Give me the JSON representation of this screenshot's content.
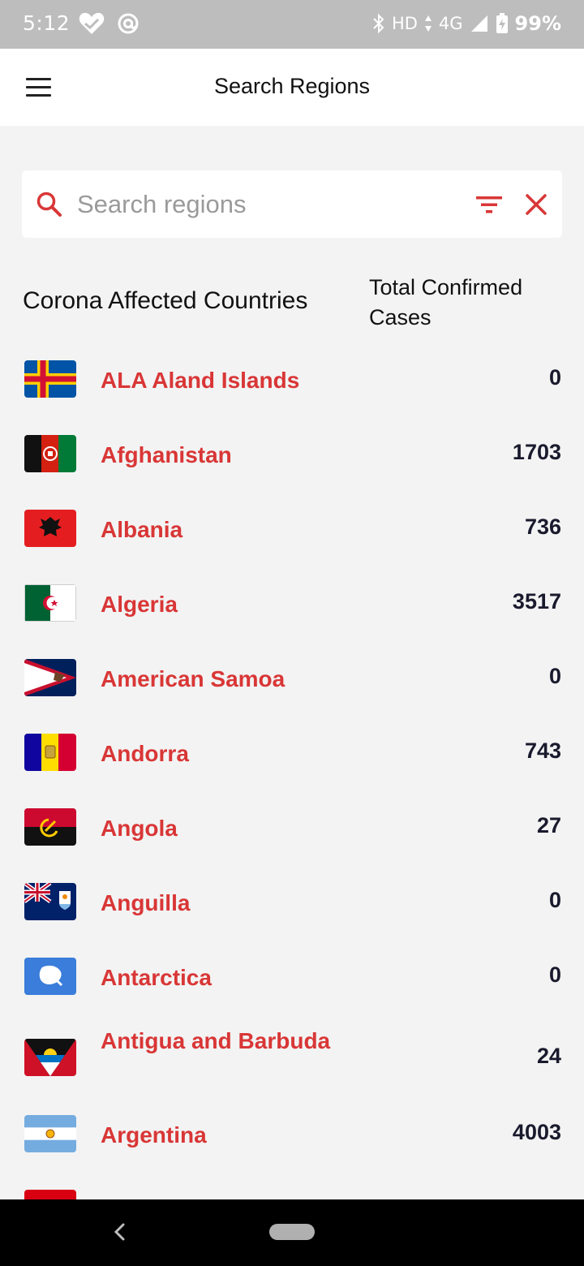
{
  "status_bar": {
    "time": "5:12",
    "network": "HD",
    "signal": "4G",
    "battery": "99%"
  },
  "app_bar": {
    "title": "Search Regions"
  },
  "search": {
    "placeholder": "Search regions",
    "value": ""
  },
  "list_header": {
    "left": "Corona Affected Countries",
    "right": "Total Confirmed Cases"
  },
  "countries": [
    {
      "name": "ALA Aland Islands",
      "count": "0"
    },
    {
      "name": "Afghanistan",
      "count": "1703"
    },
    {
      "name": "Albania",
      "count": "736"
    },
    {
      "name": "Algeria",
      "count": "3517"
    },
    {
      "name": "American Samoa",
      "count": "0"
    },
    {
      "name": "Andorra",
      "count": "743"
    },
    {
      "name": "Angola",
      "count": "27"
    },
    {
      "name": "Anguilla",
      "count": "0"
    },
    {
      "name": "Antarctica",
      "count": "0"
    },
    {
      "name": "Antigua and Barbuda",
      "count": "24"
    },
    {
      "name": "Argentina",
      "count": "4003"
    }
  ],
  "colors": {
    "accent": "#d93636",
    "status_bar": "#bdbdbd",
    "background": "#f3f3f3"
  }
}
